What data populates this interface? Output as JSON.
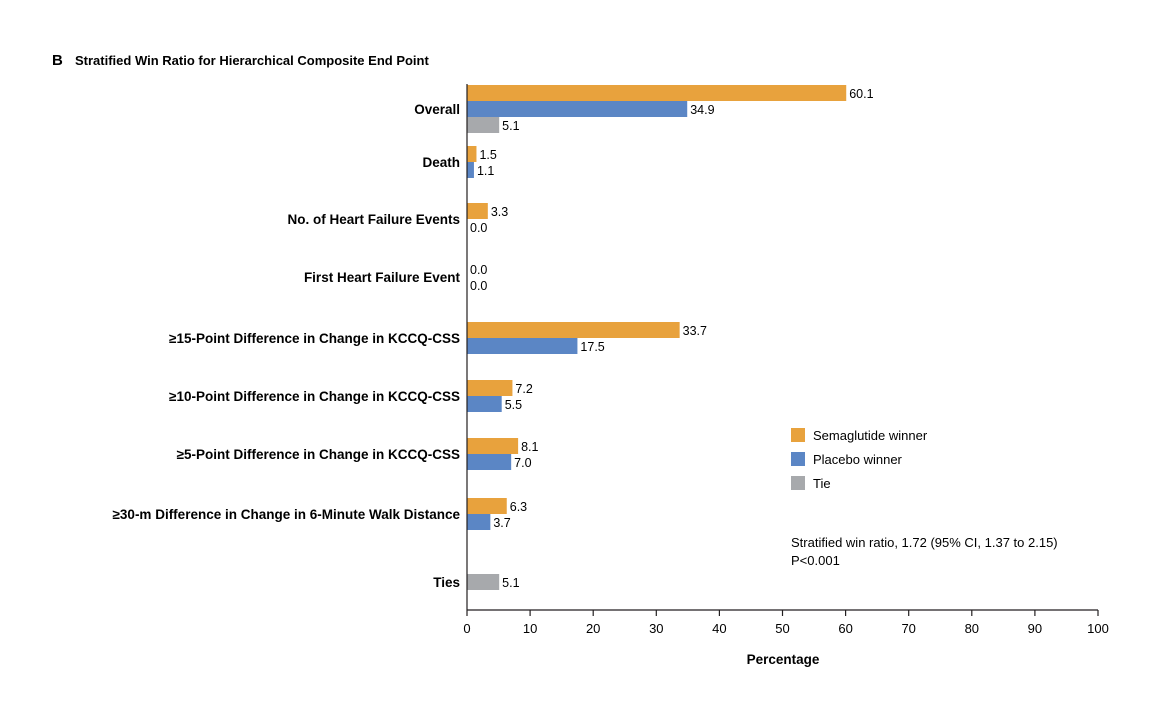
{
  "panel_letter": "B",
  "chart_data": {
    "type": "bar",
    "orientation": "horizontal",
    "title": "Stratified Win Ratio for Hierarchical Composite End Point",
    "xlabel": "Percentage",
    "ylabel": "",
    "xlim": [
      0,
      100
    ],
    "xticks": [
      0,
      10,
      20,
      30,
      40,
      50,
      60,
      70,
      80,
      90,
      100
    ],
    "grid": false,
    "legend_position": "right",
    "categories": [
      "Overall",
      "Death",
      "No. of Heart Failure Events",
      "First Heart Failure Event",
      "≥15-Point Difference in Change in KCCQ-CSS",
      "≥10-Point Difference in Change in KCCQ-CSS",
      "≥5-Point Difference in Change in KCCQ-CSS",
      "≥30-m Difference in Change in 6-Minute Walk Distance",
      "Ties"
    ],
    "series": [
      {
        "name": "Semaglutide winner",
        "color": "#E8A23D",
        "values": [
          60.1,
          1.5,
          3.3,
          0.0,
          33.7,
          7.2,
          8.1,
          6.3,
          null
        ],
        "labels": [
          "60.1",
          "1.5",
          "3.3",
          "0.0",
          "33.7",
          "7.2",
          "8.1",
          "6.3",
          null
        ]
      },
      {
        "name": "Placebo winner",
        "color": "#5B86C5",
        "values": [
          34.9,
          1.1,
          0.0,
          0.0,
          17.5,
          5.5,
          7.0,
          3.7,
          null
        ],
        "labels": [
          "34.9",
          "1.1",
          "0.0",
          "0.0",
          "17.5",
          "5.5",
          "7.0",
          "3.7",
          null
        ]
      },
      {
        "name": "Tie",
        "color": "#A7A9AC",
        "values": [
          5.1,
          null,
          null,
          null,
          null,
          null,
          null,
          null,
          5.1
        ],
        "labels": [
          "5.1",
          null,
          null,
          null,
          null,
          null,
          null,
          null,
          "5.1"
        ]
      }
    ],
    "annotations": [
      "Stratified win ratio, 1.72 (95% CI, 1.37 to 2.15)",
      "P<0.001"
    ]
  }
}
